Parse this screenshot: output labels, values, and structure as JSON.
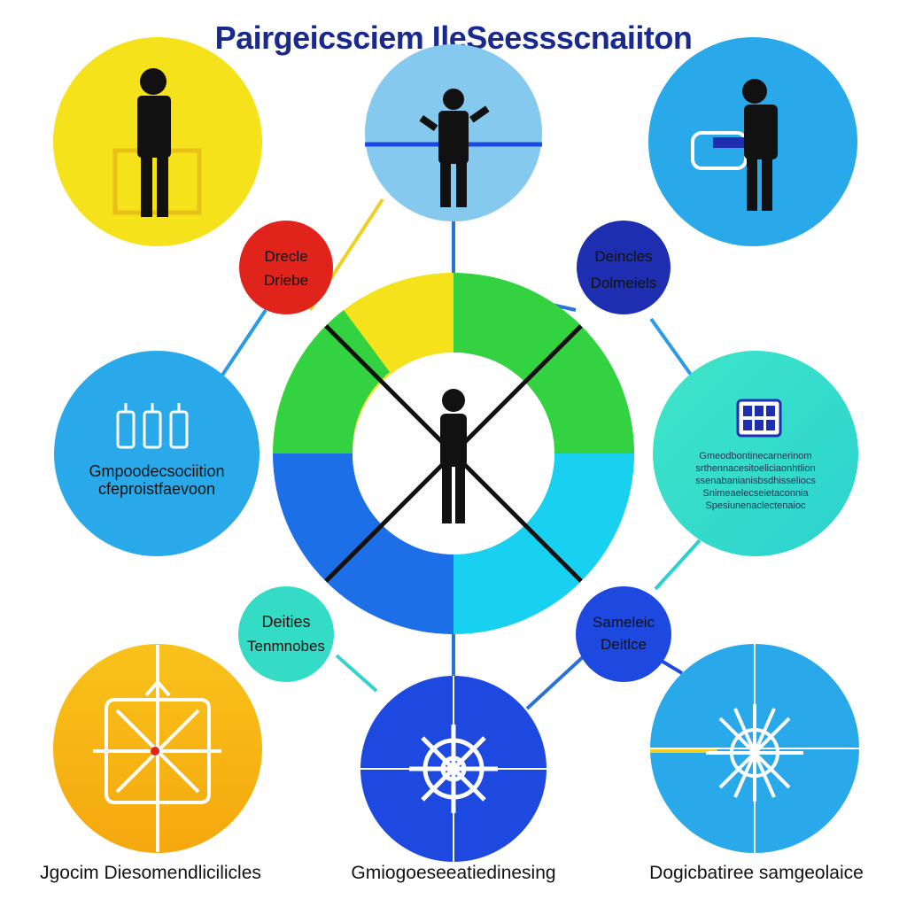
{
  "title": "Pairgeicsciem IleSeessscnaiiton",
  "small_circles": {
    "top_left": {
      "line1": "Drecle",
      "line2": "Driebe"
    },
    "top_right": {
      "line1": "Deincles",
      "line2": "Dolmeiels"
    },
    "bottom_left": {
      "line1": "Deities",
      "line2": "Tenmnobes"
    },
    "bottom_right": {
      "line1": "Sameleic",
      "line2": "Deitlce"
    }
  },
  "mid_left": {
    "line1": "Gmpoodecsociition",
    "line2": "cfeproistfaevoon"
  },
  "mid_right": {
    "lines": [
      "Gmeodbontinecarnerinom",
      "srthennacesitoeliciaonhtlion",
      "ssenabanianisbsdhisseliocs",
      "Snimeaelecseietaconnia",
      "Spesiunenaclectenaioc"
    ]
  },
  "footer": {
    "left": "Jgocim Diesomendlicilicles",
    "center": "Gmiogoeseeatiedinesing",
    "right": "Dogicbatiree samgeolaice"
  },
  "colors": {
    "title": "#1a2a8c",
    "yellow": "#f6e21a",
    "light_blue": "#86c9ee",
    "sky_blue": "#2aa9ea",
    "red": "#e0241c",
    "navy": "#1d2fb0",
    "teal": "#34dcc6",
    "orange": "#f7b813",
    "royal_blue": "#1d49e0",
    "green": "#33d240"
  }
}
